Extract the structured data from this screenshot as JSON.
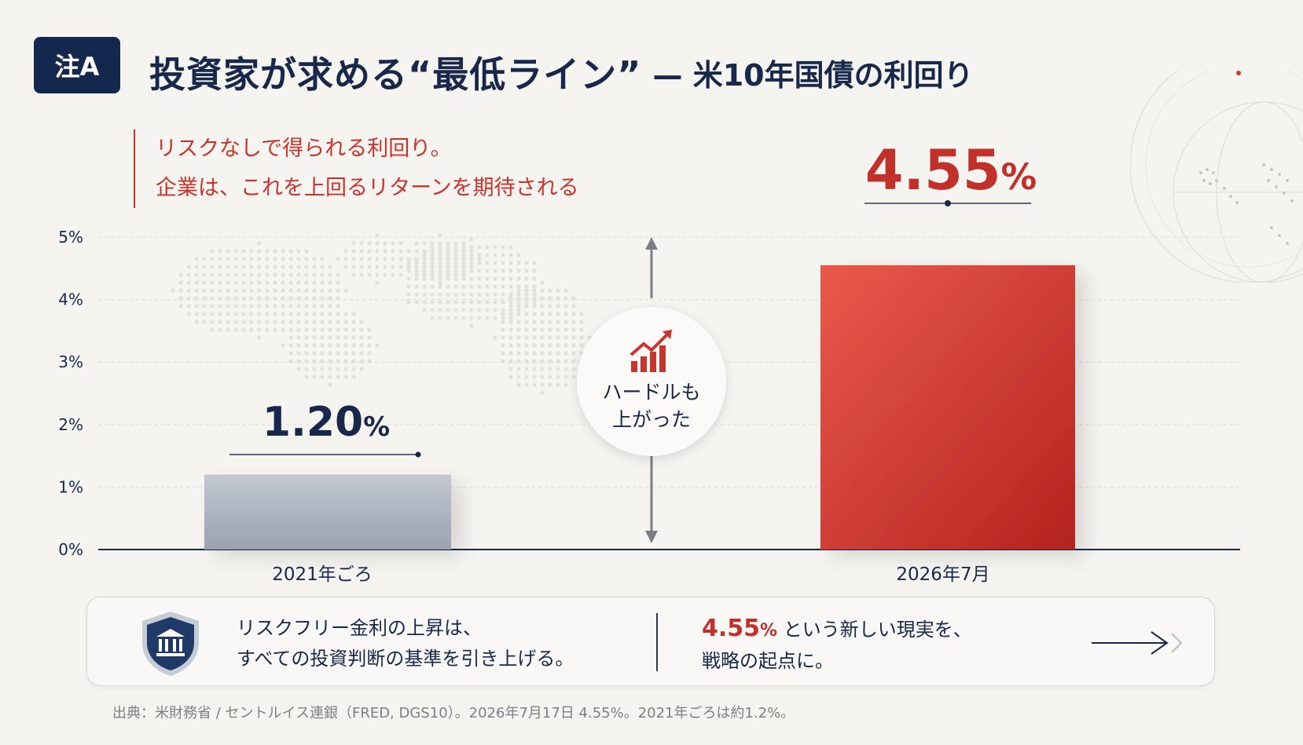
{
  "header": {
    "badge": "注A",
    "title": "投資家が求める“最低ライン”",
    "subtitle": "— 米10年国債の利回り"
  },
  "note": {
    "line1": "リスクなしで得られる利回り。",
    "line2": "企業は、これを上回るリターンを期待される"
  },
  "chart_data": {
    "type": "bar",
    "categories": [
      "2021年ごろ",
      "2026年7月"
    ],
    "values": [
      1.2,
      4.55
    ],
    "value_labels": [
      "1.20",
      "4.55"
    ],
    "value_unit": "%",
    "ylim": [
      0,
      5
    ],
    "yticks": [
      "0%",
      "1%",
      "2%",
      "3%",
      "4%",
      "5%"
    ],
    "grid": true,
    "colors": [
      "#aab0bb",
      "#d23a30"
    ]
  },
  "callout": {
    "line1": "ハードルも",
    "line2": "上がった"
  },
  "panel": {
    "left_line1": "リスクフリー金利の上昇は、",
    "left_line2": "すべての投資判断の基準を引き上げる。",
    "right_value": "4.55",
    "right_unit": "%",
    "right_line1_rest": " という新しい現実を、",
    "right_line2": "戦略の起点に。"
  },
  "source": "出典：米財務省 / セントルイス連銀（FRED, DGS10）。2026年7月17日 4.55%。2021年ごろは約1.2%。",
  "colors": {
    "navy": "#17284a",
    "red": "#c2302a",
    "background": "#f6f4f0"
  }
}
